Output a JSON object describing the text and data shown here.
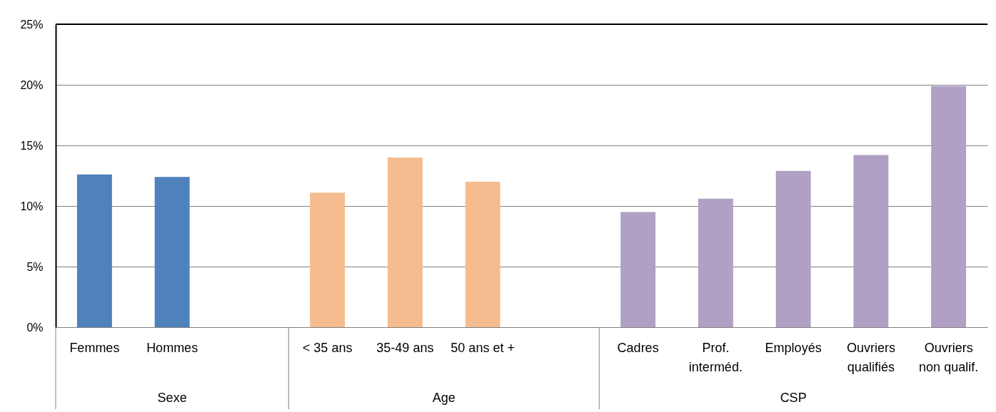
{
  "chart_data": {
    "type": "bar",
    "categories": [
      "Femmes",
      "Hommes",
      null,
      "< 35 ans",
      "35-49 ans",
      "50 ans et +",
      null,
      "Cadres",
      "Prof.\ninterméd.",
      "Employés",
      "Ouvriers\nqualifiés",
      "Ouvriers\nnon qualif."
    ],
    "annotations": [
      "Sexe",
      "Age",
      "CSP"
    ],
    "series": [
      {
        "color": "#4f81bd",
        "values": [
          12.6,
          12.4,
          null,
          null,
          null,
          null,
          null,
          null,
          null,
          null,
          null,
          null
        ]
      },
      {
        "color": "#f5bd8f",
        "values": [
          null,
          null,
          null,
          11.1,
          14.0,
          12.0,
          null,
          null,
          null,
          null,
          null,
          null
        ]
      },
      {
        "color": "#b0a0c4",
        "values": [
          null,
          null,
          null,
          null,
          null,
          null,
          null,
          9.5,
          10.6,
          12.9,
          14.2,
          19.9
        ]
      }
    ],
    "ylim": [
      0,
      25
    ],
    "yticks": [
      {
        "value": 0,
        "label": "0%"
      },
      {
        "value": 5,
        "label": "5%"
      },
      {
        "value": 10,
        "label": "10%"
      },
      {
        "value": 15,
        "label": "15%"
      },
      {
        "value": 20,
        "label": "20%"
      },
      {
        "value": 25,
        "label": "25%"
      }
    ],
    "grid": "y",
    "legend": false
  }
}
